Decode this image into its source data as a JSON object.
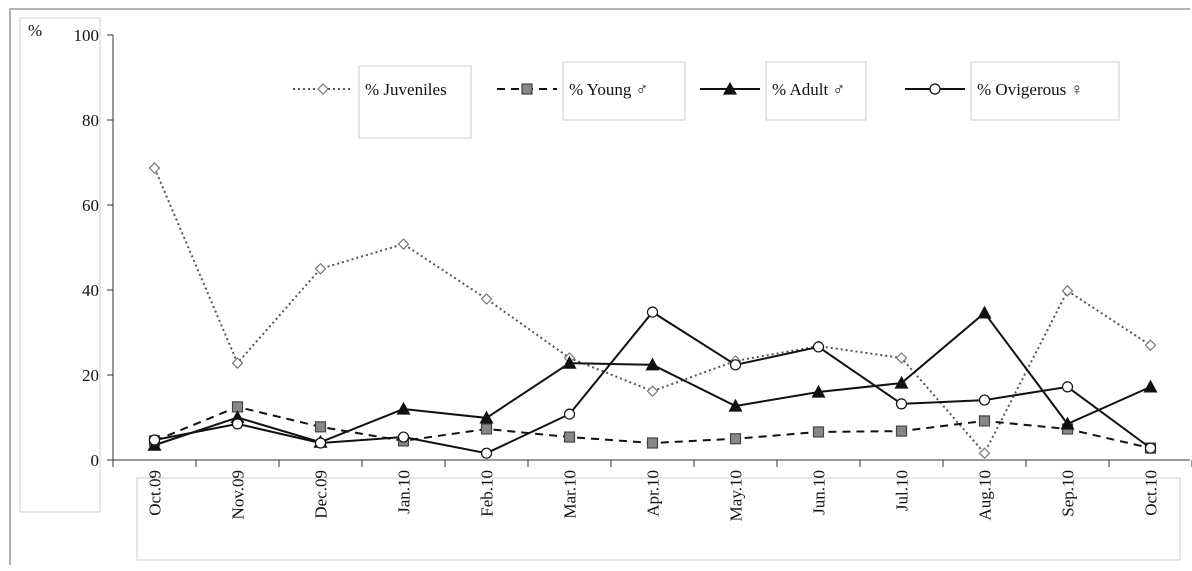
{
  "chart_data": {
    "type": "line",
    "ylabel": "%",
    "categories": [
      "Oct.09",
      "Nov.09",
      "Dec.09",
      "Jan.10",
      "Feb.10",
      "Mar.10",
      "Apr.10",
      "May.10",
      "Jun.10",
      "Jul.10",
      "Aug.10",
      "Sep.10",
      "Oct.10"
    ],
    "series": [
      {
        "name": "% Juveniles",
        "color": "#555555",
        "dash": "dotted",
        "marker": "diamond",
        "values": [
          68.7,
          22.8,
          45,
          50.8,
          37.9,
          24,
          16.2,
          23.3,
          26.8,
          24,
          1.6,
          39.8,
          27
        ]
      },
      {
        "name": "% Young ♂",
        "color": "#111111",
        "dash": "dashed",
        "marker": "square",
        "values": [
          4.5,
          12.5,
          7.8,
          4.5,
          7.3,
          5.4,
          4,
          5,
          6.6,
          6.8,
          9.2,
          7.3,
          2.8
        ]
      },
      {
        "name": "% Adult ♂",
        "color": "#111111",
        "dash": "solid",
        "marker": "triangle",
        "values": [
          3.5,
          10,
          4.2,
          12,
          9.9,
          22.8,
          22.4,
          12.7,
          16,
          18.1,
          34.6,
          8.5,
          17.2
        ]
      },
      {
        "name": "% Ovigerous ♀",
        "color": "#111111",
        "dash": "solid",
        "marker": "circle",
        "values": [
          4.7,
          8.5,
          4,
          5.4,
          1.6,
          10.8,
          34.8,
          22.4,
          26.6,
          13.2,
          14.1,
          17.2,
          2.8
        ]
      }
    ],
    "ylim": [
      0,
      100
    ],
    "yticks": [
      0,
      20,
      40,
      60,
      80,
      100
    ]
  }
}
